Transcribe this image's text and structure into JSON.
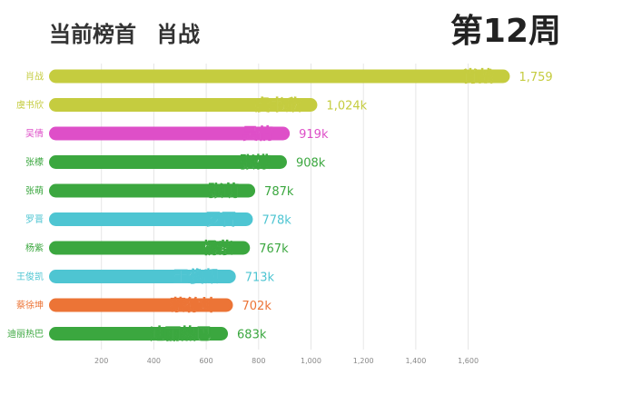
{
  "header": {
    "leader_prefix": "当前榜首",
    "leader_name": "肖战",
    "week_label": "第12周"
  },
  "chart_data": {
    "type": "bar",
    "orientation": "horizontal",
    "categories": [
      "肖战",
      "虞书欣",
      "吴倩",
      "张檬",
      "张萌",
      "罗晋",
      "杨紫",
      "王俊凯",
      "蔡徐坤",
      "迪丽热巴"
    ],
    "values": [
      1759,
      1024,
      919,
      908,
      787,
      778,
      767,
      713,
      702,
      683
    ],
    "value_labels": [
      "1,759",
      "1,024k",
      "919k",
      "908k",
      "787k",
      "778k",
      "767k",
      "713k",
      "702k",
      "683k"
    ],
    "colors": [
      "#c5cc3f",
      "#c5cc3f",
      "#de4fc8",
      "#3ba73f",
      "#3ba73f",
      "#4ec5d2",
      "#3ba73f",
      "#4ec5d2",
      "#ec7436",
      "#3ba73f"
    ],
    "x_ticks": [
      "200",
      "400",
      "600",
      "800",
      "1,000",
      "1,200",
      "1,400",
      "1,600"
    ],
    "xlim": [
      0,
      1759
    ],
    "grid": true,
    "legend": "none"
  }
}
